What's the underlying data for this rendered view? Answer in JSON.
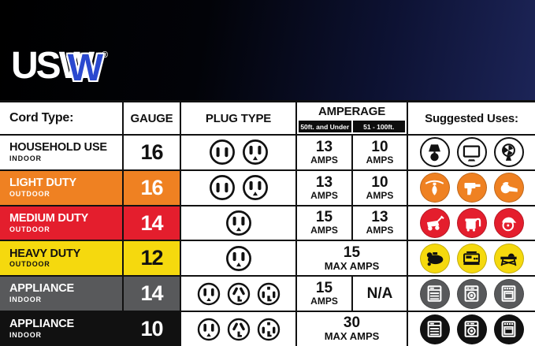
{
  "brand": {
    "logo_us": "US",
    "logo_w": "W",
    "registered_mark": "®"
  },
  "colors": {
    "banner_dark": "#020308",
    "banner_navy": "#1c2457",
    "logo_blue": "#2b49cf",
    "orange": "#EF8122",
    "red": "#E41E2D",
    "yellow": "#F5D90E",
    "gray": "#58595B",
    "black": "#111111",
    "white": "#FFFFFF"
  },
  "table": {
    "headers": {
      "cord_type": "Cord Type:",
      "gauge": "GAUGE",
      "plug_type": "PLUG TYPE",
      "amperage": "AMPERAGE",
      "amperage_sub_1": "50ft. and Under",
      "amperage_sub_2": "51 - 100ft.",
      "suggested_uses": "Suggested Uses:"
    },
    "rows": [
      {
        "cord_type": "HOUSEHOLD USE",
        "location": "INDOOR",
        "gauge": "16",
        "bg": "#FFFFFF",
        "fg": "#111111",
        "plugs": [
          "two-prong",
          "three-prong"
        ],
        "amperage": {
          "left_value": "13",
          "left_unit": "AMPS",
          "right_value": "10",
          "right_unit": "AMPS"
        },
        "uses": [
          "lamp",
          "television",
          "fan"
        ],
        "use_fill": "#FFFFFF",
        "use_glyph": "#111111",
        "use_border": "2px solid #111111"
      },
      {
        "cord_type": "LIGHT DUTY",
        "location": "OUTDOOR",
        "gauge": "16",
        "bg": "#EF8122",
        "fg": "#FFFFFF",
        "plugs": [
          "two-prong",
          "three-prong"
        ],
        "amperage": {
          "left_value": "13",
          "left_unit": "AMPS",
          "right_value": "10",
          "right_unit": "AMPS"
        },
        "uses": [
          "string-light",
          "power-drill",
          "leaf-blower"
        ],
        "use_fill": "#EF8122",
        "use_glyph": "#FFFFFF",
        "use_border": "1px solid rgba(0,0,0,0.2)"
      },
      {
        "cord_type": "MEDIUM DUTY",
        "location": "OUTDOOR",
        "gauge": "14",
        "bg": "#E41E2D",
        "fg": "#FFFFFF",
        "plugs": [
          "three-prong"
        ],
        "amperage": {
          "left_value": "15",
          "left_unit": "AMPS",
          "right_value": "13",
          "right_unit": "AMPS"
        },
        "uses": [
          "lawn-mower",
          "wet-dry-vac",
          "circular-saw"
        ],
        "use_fill": "#E41E2D",
        "use_glyph": "#FFFFFF",
        "use_border": "1px solid rgba(0,0,0,0.2)"
      },
      {
        "cord_type": "HEAVY DUTY",
        "location": "OUTDOOR",
        "gauge": "12",
        "bg": "#F5D90E",
        "fg": "#111111",
        "plugs": [
          "three-prong"
        ],
        "amperage": {
          "merged_value": "15",
          "merged_unit": "MAX AMPS"
        },
        "uses": [
          "air-compressor",
          "generator",
          "table-saw"
        ],
        "use_fill": "#F5D90E",
        "use_glyph": "#111111",
        "use_border": "1px solid rgba(0,0,0,0.2)"
      },
      {
        "cord_type": "APPLIANCE",
        "location": "INDOOR",
        "gauge": "14",
        "bg": "#58595B",
        "fg": "#FFFFFF",
        "plugs": [
          "three-prong",
          "angled-three-prong",
          "four-prong"
        ],
        "amperage": {
          "left_value": "15",
          "left_unit": "AMPS",
          "right_value": "N/A",
          "right_unit": ""
        },
        "uses": [
          "dishwasher",
          "washing-machine",
          "range-oven"
        ],
        "use_fill": "#58595B",
        "use_glyph": "#FFFFFF",
        "use_border": "1px solid rgba(0,0,0,0.2)"
      },
      {
        "cord_type": "APPLIANCE",
        "location": "INDOOR",
        "gauge": "10",
        "bg": "#111111",
        "fg": "#FFFFFF",
        "plugs": [
          "three-prong",
          "angled-three-prong",
          "four-prong"
        ],
        "amperage": {
          "merged_value": "30",
          "merged_unit": "MAX AMPS"
        },
        "uses": [
          "dishwasher",
          "washing-machine",
          "range-oven"
        ],
        "use_fill": "#111111",
        "use_glyph": "#FFFFFF",
        "use_border": "1px solid rgba(0,0,0,0.2)"
      }
    ]
  },
  "chart_data": {
    "type": "table",
    "columns": [
      "Cord Type:",
      "GAUGE",
      "PLUG TYPE",
      "AMPERAGE 50ft. and Under",
      "AMPERAGE 51 - 100ft.",
      "Suggested Uses:"
    ],
    "rows": [
      [
        "HOUSEHOLD USE / INDOOR",
        "16",
        "two-prong, three-prong",
        "13 AMPS",
        "10 AMPS",
        "lamp, television, fan"
      ],
      [
        "LIGHT DUTY / OUTDOOR",
        "16",
        "two-prong, three-prong",
        "13 AMPS",
        "10 AMPS",
        "string-light, power-drill, leaf-blower"
      ],
      [
        "MEDIUM DUTY / OUTDOOR",
        "14",
        "three-prong",
        "15 AMPS",
        "13 AMPS",
        "lawn-mower, wet-dry-vac, circular-saw"
      ],
      [
        "HEAVY DUTY / OUTDOOR",
        "12",
        "three-prong",
        "15 MAX AMPS",
        "15 MAX AMPS",
        "air-compressor, generator, table-saw"
      ],
      [
        "APPLIANCE / INDOOR",
        "14",
        "three-prong, angled-three-prong, four-prong",
        "15 AMPS",
        "N/A",
        "dishwasher, washing-machine, range-oven"
      ],
      [
        "APPLIANCE / INDOOR",
        "10",
        "three-prong, angled-three-prong, four-prong",
        "30 MAX AMPS",
        "30 MAX AMPS",
        "dishwasher, washing-machine, range-oven"
      ]
    ]
  }
}
